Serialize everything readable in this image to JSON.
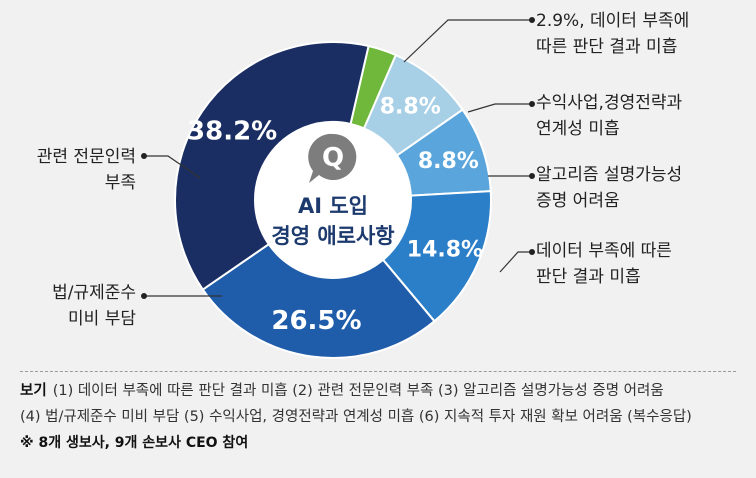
{
  "chart_data": {
    "type": "pie",
    "center_title": [
      "AI 도입",
      "경영 애로사항"
    ],
    "center_icon_letter": "Q",
    "slices": [
      {
        "value": 2.9,
        "display": "2.9%",
        "label": [
          "2.9%, 데이터 부족에",
          "따른 판단 결과 미흡"
        ],
        "color": "#6fb83b"
      },
      {
        "value": 8.8,
        "display": "8.8%",
        "label": [
          "수익사업,경영전략과",
          "연계성 미흡"
        ],
        "color": "#a7cfe6"
      },
      {
        "value": 8.8,
        "display": "8.8%",
        "label": [
          "알고리즘 설명가능성",
          "증명 어려움"
        ],
        "color": "#5aa5dc"
      },
      {
        "value": 14.8,
        "display": "14.8%",
        "label": [
          "데이터 부족에 따른",
          "판단 결과 미흡"
        ],
        "color": "#2b7fc9"
      },
      {
        "value": 26.5,
        "display": "26.5%",
        "label": [
          "법/규제준수",
          "미비 부담"
        ],
        "color": "#1f5caa"
      },
      {
        "value": 38.2,
        "display": "38.2%",
        "label": [
          "관련 전문인력",
          "부족"
        ],
        "color": "#1a2e63"
      }
    ]
  },
  "legend": {
    "key": "보기",
    "line1": "(1) 데이터 부족에 따른 판단 결과 미흡  (2) 관련 전문인력 부족  (3) 알고리즘 설명가능성 증명 어려움",
    "line2": "(4) 법/규제준수 미비 부담  (5) 수익사업, 경영전략과 연계성 미흡  (6) 지속적 투자 재원 확보 어려움  (복수응답)",
    "note": "※ 8개 생보사, 9개 손보사 CEO 참여"
  }
}
